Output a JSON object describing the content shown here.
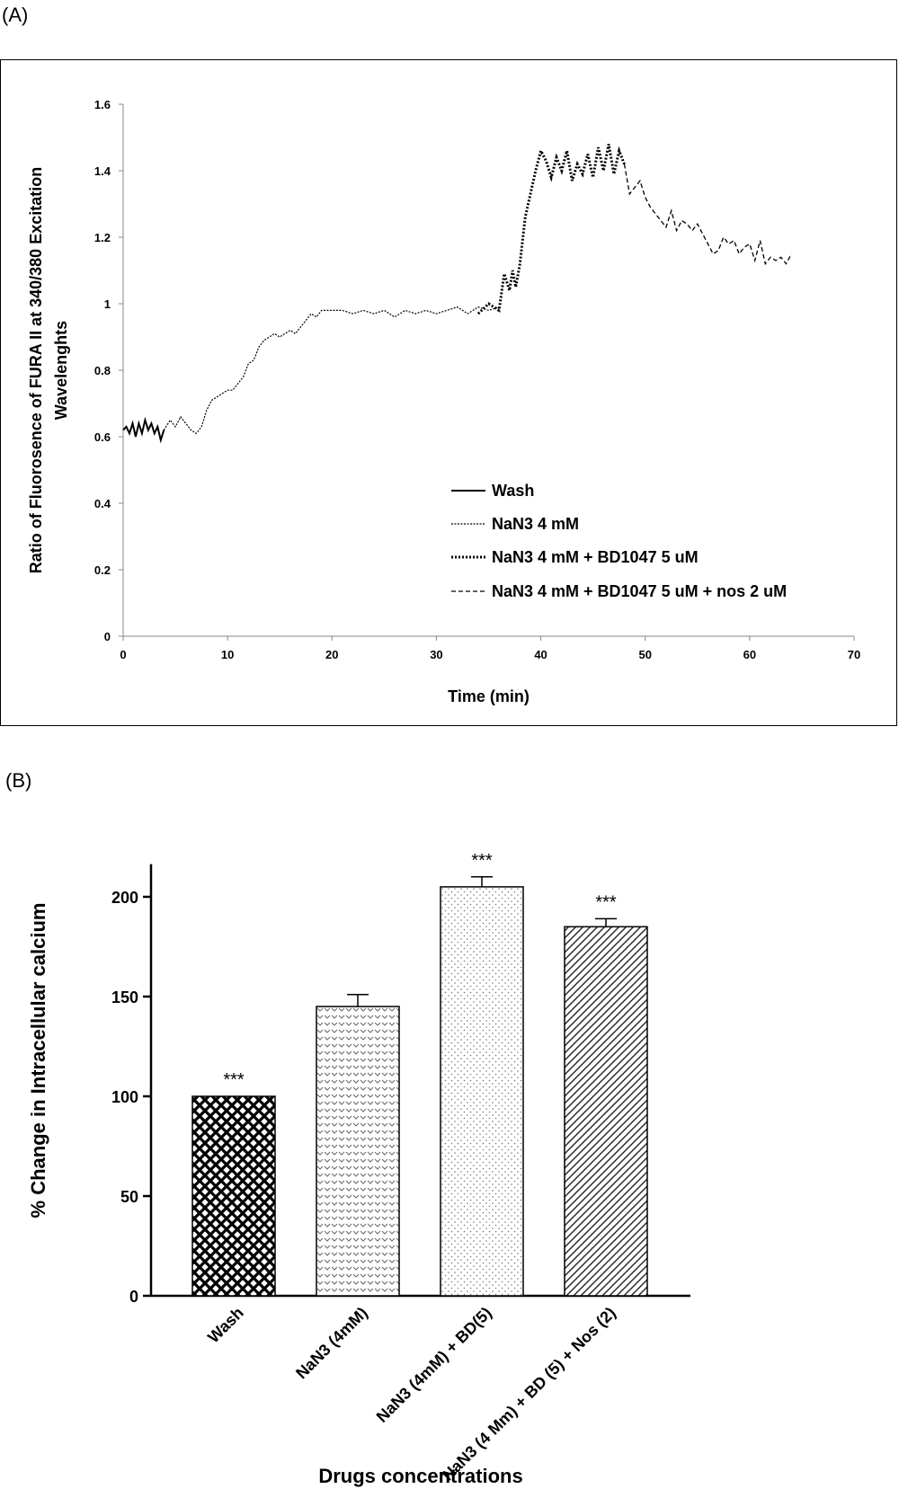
{
  "panel_labels": {
    "a": "(A)",
    "b": "(B)"
  },
  "chart_data": [
    {
      "type": "line",
      "xlabel": "Time (min)",
      "ylabel_line1": "Ratio of Fluorosence of FURA II at 340/380 Excitation",
      "ylabel_line2": "Wavelenghts",
      "xlim": [
        0,
        70
      ],
      "ylim": [
        0,
        1.6
      ],
      "x_ticks": [
        0,
        10,
        20,
        30,
        40,
        50,
        60,
        70
      ],
      "y_ticks": [
        0,
        0.2,
        0.4,
        0.6,
        0.8,
        1,
        1.2,
        1.4,
        1.6
      ],
      "y_tick_labels": [
        "0",
        "0.2",
        "0.4",
        "0.6",
        "0.8",
        "1",
        "1.2",
        "1.4",
        "1.6"
      ],
      "grid": false,
      "legend_position": "bottom-right",
      "series": [
        {
          "name": "Wash",
          "style": "solid",
          "x": [
            0,
            0.3,
            0.6,
            0.9,
            1.2,
            1.5,
            1.8,
            2.1,
            2.4,
            2.7,
            3.0,
            3.3,
            3.6,
            3.9
          ],
          "y": [
            0.62,
            0.63,
            0.61,
            0.64,
            0.6,
            0.64,
            0.61,
            0.65,
            0.62,
            0.64,
            0.61,
            0.63,
            0.59,
            0.62
          ]
        },
        {
          "name": "NaN3 4 mM",
          "style": "dashed-fine",
          "x": [
            3.9,
            4.5,
            5.0,
            5.5,
            6.0,
            6.5,
            7.0,
            7.5,
            8.0,
            8.5,
            9.0,
            9.5,
            10.0,
            10.5,
            11.0,
            11.5,
            12.0,
            12.5,
            13.0,
            13.5,
            14.0,
            14.5,
            15.0,
            15.5,
            16.0,
            16.5,
            17.0,
            17.5,
            18.0,
            18.5,
            19.0,
            19.5,
            20.0,
            21.0,
            22.0,
            23.0,
            24.0,
            25.0,
            26.0,
            27.0,
            28.0,
            29.0,
            30.0,
            31.0,
            32.0,
            33.0,
            34.0,
            35.0,
            36.0
          ],
          "y": [
            0.62,
            0.65,
            0.63,
            0.66,
            0.64,
            0.62,
            0.61,
            0.63,
            0.68,
            0.71,
            0.72,
            0.73,
            0.74,
            0.74,
            0.76,
            0.78,
            0.82,
            0.83,
            0.87,
            0.89,
            0.9,
            0.91,
            0.9,
            0.91,
            0.92,
            0.91,
            0.93,
            0.95,
            0.97,
            0.96,
            0.98,
            0.98,
            0.98,
            0.98,
            0.97,
            0.98,
            0.97,
            0.98,
            0.96,
            0.98,
            0.97,
            0.98,
            0.97,
            0.98,
            0.99,
            0.97,
            0.99,
            0.98,
            0.99
          ]
        },
        {
          "name": "NaN3 4 mM + BD1047 5 uM",
          "style": "dotted",
          "x": [
            34.0,
            35.0,
            36.0,
            36.5,
            37.0,
            37.3,
            37.6,
            38.0,
            38.5,
            39.0,
            39.5,
            40.0,
            40.5,
            41.0,
            41.5,
            42.0,
            42.5,
            43.0,
            43.5,
            44.0,
            44.5,
            45.0,
            45.5,
            46.0,
            46.5,
            47.0,
            47.5,
            48.0
          ],
          "y": [
            0.97,
            1.0,
            0.98,
            1.09,
            1.04,
            1.1,
            1.05,
            1.12,
            1.26,
            1.33,
            1.4,
            1.46,
            1.43,
            1.38,
            1.44,
            1.4,
            1.46,
            1.37,
            1.42,
            1.39,
            1.45,
            1.38,
            1.47,
            1.4,
            1.48,
            1.39,
            1.46,
            1.42
          ]
        },
        {
          "name": "NaN3 4 mM + BD1047 5 uM + nos 2 uM",
          "style": "dashed",
          "x": [
            48.0,
            48.5,
            49.0,
            49.5,
            50.0,
            50.5,
            51.0,
            51.5,
            52.0,
            52.5,
            53.0,
            53.5,
            54.0,
            54.5,
            55.0,
            55.5,
            56.0,
            56.5,
            57.0,
            57.5,
            58.0,
            58.5,
            59.0,
            59.5,
            60.0,
            60.5,
            61.0,
            61.5,
            62.0,
            62.5,
            63.0,
            63.5,
            64.0
          ],
          "y": [
            1.42,
            1.33,
            1.35,
            1.37,
            1.32,
            1.29,
            1.27,
            1.25,
            1.23,
            1.28,
            1.22,
            1.25,
            1.24,
            1.22,
            1.24,
            1.21,
            1.18,
            1.15,
            1.16,
            1.2,
            1.18,
            1.19,
            1.15,
            1.17,
            1.18,
            1.13,
            1.19,
            1.12,
            1.14,
            1.13,
            1.14,
            1.12,
            1.15
          ]
        }
      ]
    },
    {
      "type": "bar",
      "xlabel": "Drugs concentrations",
      "ylabel": "% Change in Intracellular calcium",
      "ylim": [
        0,
        220
      ],
      "y_ticks": [
        0,
        50,
        100,
        150,
        200
      ],
      "grid": false,
      "categories": [
        "Wash",
        "NaN3 (4mM)",
        "NaN3 (4mM) + BD(5)",
        "NaN3 (4 Mm) + BD (5) + Nos (2)"
      ],
      "values": [
        100,
        145,
        205,
        185
      ],
      "errors": [
        0,
        6,
        5,
        4
      ],
      "patterns": [
        "crosshatch",
        "chevron-dots",
        "fine-dots",
        "diagonal-lines"
      ],
      "significance": [
        "***",
        "",
        "***",
        "***"
      ]
    }
  ]
}
